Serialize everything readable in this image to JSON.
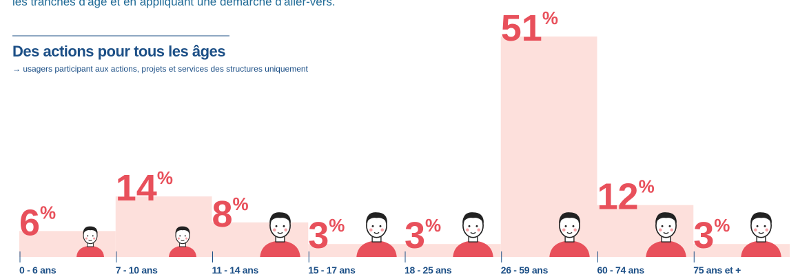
{
  "intro": "les tranches d'âge et en appliquant une démarche d'aller-vers.",
  "chart_data": {
    "type": "bar",
    "title": "Des actions pour tous les âges",
    "subtitle": "→ usagers participant aux actions, projets et services des structures uniquement",
    "categories": [
      "0 - 6 ans",
      "7 - 10 ans",
      "11 - 14 ans",
      "15 - 17 ans",
      "18 - 25 ans",
      "26 - 59 ans",
      "60 - 74 ans",
      "75 ans et +"
    ],
    "values": [
      6,
      14,
      8,
      3,
      3,
      51,
      12,
      3
    ],
    "value_labels": [
      "6%",
      "14%",
      "8%",
      "3%",
      "3%",
      "51%",
      "12%",
      "3%"
    ],
    "color": "#fde0dc",
    "label_color": "#e8505b"
  }
}
